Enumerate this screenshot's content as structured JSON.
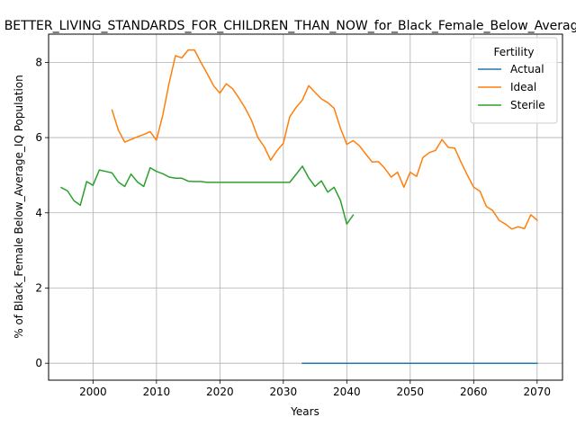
{
  "chart_data": {
    "type": "line",
    "title": "BETTER_LIVING_STANDARDS_FOR_CHILDREN_THAN_NOW_for_Black_Female_Below_Average_IQ",
    "xlabel": "Years",
    "ylabel": "% of Black_Female Below_Average_IQ Population",
    "xlim": [
      1993,
      2074
    ],
    "ylim": [
      -0.45,
      8.75
    ],
    "x_ticks": [
      2000,
      2010,
      2020,
      2030,
      2040,
      2050,
      2060,
      2070
    ],
    "y_ticks": [
      0,
      2,
      4,
      6,
      8
    ],
    "grid": true,
    "legend": {
      "title": "Fertility",
      "placement": "upper right"
    },
    "series": [
      {
        "name": "Actual",
        "color": "#1f77b4",
        "points": [
          [
            2033,
            0
          ],
          [
            2040,
            0
          ],
          [
            2050,
            0
          ],
          [
            2060,
            0
          ],
          [
            2070,
            0
          ]
        ]
      },
      {
        "name": "Ideal",
        "color": "#ff7f0e",
        "points": [
          [
            2003,
            6.73
          ],
          [
            2004,
            6.2
          ],
          [
            2005,
            5.88
          ],
          [
            2006,
            5.95
          ],
          [
            2007,
            6.02
          ],
          [
            2008,
            6.08
          ],
          [
            2009,
            6.16
          ],
          [
            2010,
            5.93
          ],
          [
            2011,
            6.6
          ],
          [
            2012,
            7.45
          ],
          [
            2013,
            8.18
          ],
          [
            2014,
            8.12
          ],
          [
            2015,
            8.33
          ],
          [
            2016,
            8.33
          ],
          [
            2017,
            8.0
          ],
          [
            2018,
            7.7
          ],
          [
            2019,
            7.38
          ],
          [
            2020,
            7.18
          ],
          [
            2021,
            7.43
          ],
          [
            2022,
            7.3
          ],
          [
            2023,
            7.05
          ],
          [
            2024,
            6.78
          ],
          [
            2025,
            6.45
          ],
          [
            2026,
            6.0
          ],
          [
            2027,
            5.75
          ],
          [
            2028,
            5.4
          ],
          [
            2029,
            5.65
          ],
          [
            2030,
            5.85
          ],
          [
            2031,
            6.55
          ],
          [
            2032,
            6.8
          ],
          [
            2033,
            7.0
          ],
          [
            2034,
            7.38
          ],
          [
            2035,
            7.2
          ],
          [
            2036,
            7.03
          ],
          [
            2037,
            6.93
          ],
          [
            2038,
            6.78
          ],
          [
            2039,
            6.25
          ],
          [
            2040,
            5.82
          ],
          [
            2041,
            5.92
          ],
          [
            2042,
            5.78
          ],
          [
            2043,
            5.56
          ],
          [
            2044,
            5.35
          ],
          [
            2045,
            5.36
          ],
          [
            2046,
            5.18
          ],
          [
            2047,
            4.95
          ],
          [
            2048,
            5.08
          ],
          [
            2049,
            4.68
          ],
          [
            2050,
            5.08
          ],
          [
            2051,
            4.97
          ],
          [
            2052,
            5.47
          ],
          [
            2053,
            5.6
          ],
          [
            2054,
            5.66
          ],
          [
            2055,
            5.95
          ],
          [
            2056,
            5.74
          ],
          [
            2057,
            5.72
          ],
          [
            2058,
            5.35
          ],
          [
            2059,
            5.0
          ],
          [
            2060,
            4.68
          ],
          [
            2061,
            4.57
          ],
          [
            2062,
            4.17
          ],
          [
            2063,
            4.06
          ],
          [
            2064,
            3.8
          ],
          [
            2065,
            3.7
          ],
          [
            2066,
            3.57
          ],
          [
            2067,
            3.63
          ],
          [
            2068,
            3.58
          ],
          [
            2069,
            3.95
          ],
          [
            2070,
            3.8
          ]
        ]
      },
      {
        "name": "Sterile",
        "color": "#2ca02c",
        "points": [
          [
            1995,
            4.67
          ],
          [
            1996,
            4.58
          ],
          [
            1997,
            4.32
          ],
          [
            1998,
            4.2
          ],
          [
            1999,
            4.83
          ],
          [
            2000,
            4.73
          ],
          [
            2001,
            5.14
          ],
          [
            2002,
            5.1
          ],
          [
            2003,
            5.06
          ],
          [
            2004,
            4.82
          ],
          [
            2005,
            4.7
          ],
          [
            2006,
            5.03
          ],
          [
            2007,
            4.82
          ],
          [
            2008,
            4.7
          ],
          [
            2009,
            5.2
          ],
          [
            2010,
            5.1
          ],
          [
            2011,
            5.04
          ],
          [
            2012,
            4.95
          ],
          [
            2013,
            4.92
          ],
          [
            2014,
            4.92
          ],
          [
            2015,
            4.84
          ],
          [
            2016,
            4.83
          ],
          [
            2017,
            4.83
          ],
          [
            2018,
            4.81
          ],
          [
            2019,
            4.81
          ],
          [
            2020,
            4.81
          ],
          [
            2021,
            4.81
          ],
          [
            2022,
            4.81
          ],
          [
            2023,
            4.81
          ],
          [
            2024,
            4.81
          ],
          [
            2025,
            4.81
          ],
          [
            2026,
            4.81
          ],
          [
            2027,
            4.81
          ],
          [
            2028,
            4.81
          ],
          [
            2029,
            4.81
          ],
          [
            2030,
            4.81
          ],
          [
            2031,
            4.81
          ],
          [
            2032,
            5.02
          ],
          [
            2033,
            5.24
          ],
          [
            2034,
            4.93
          ],
          [
            2035,
            4.7
          ],
          [
            2036,
            4.85
          ],
          [
            2037,
            4.55
          ],
          [
            2038,
            4.68
          ],
          [
            2039,
            4.33
          ],
          [
            2040,
            3.7
          ],
          [
            2041,
            3.94
          ]
        ]
      }
    ]
  }
}
